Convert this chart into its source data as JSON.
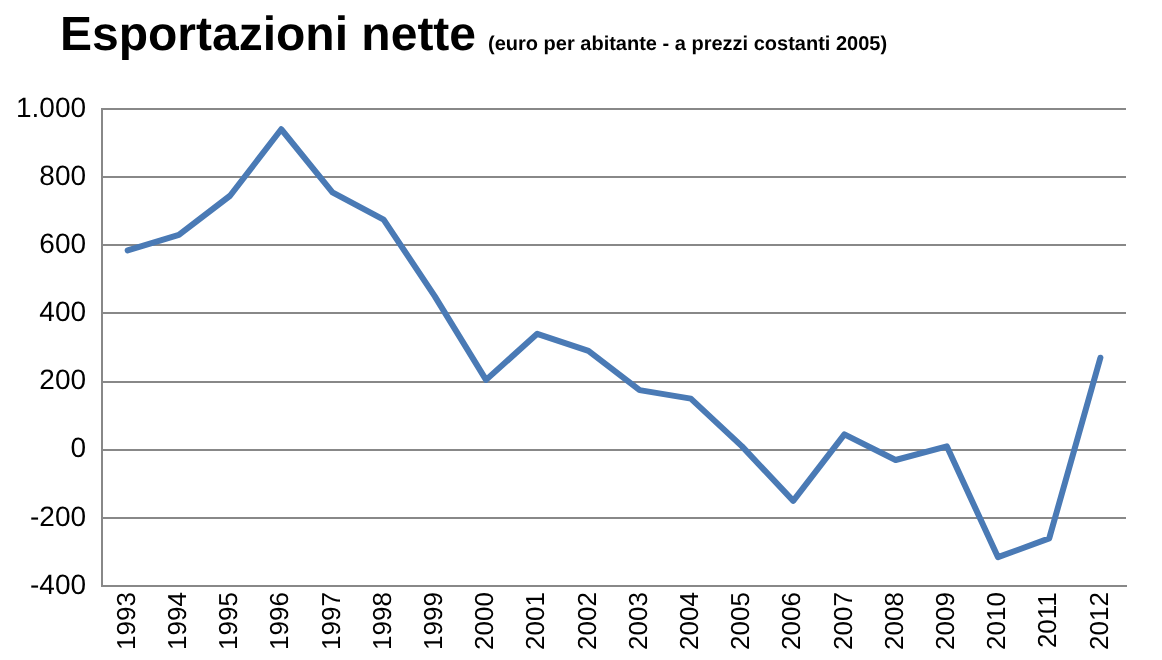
{
  "chart_data": {
    "type": "line",
    "title": "Esportazioni nette",
    "subtitle": "(euro per abitante - a prezzi costanti 2005)",
    "categories": [
      "1993",
      "1994",
      "1995",
      "1996",
      "1997",
      "1998",
      "1999",
      "2000",
      "2001",
      "2002",
      "2003",
      "2004",
      "2005",
      "2006",
      "2007",
      "2008",
      "2009",
      "2010",
      "2011",
      "2012"
    ],
    "series": [
      {
        "color": "#4a7ab5",
        "values": [
          585,
          630,
          745,
          940,
          755,
          675,
          450,
          205,
          340,
          290,
          175,
          150,
          10,
          -150,
          45,
          -30,
          10,
          -315,
          -260,
          270
        ]
      }
    ],
    "ylim": [
      -400,
      1000
    ],
    "yticks": [
      -400,
      -200,
      0,
      200,
      400,
      600,
      800,
      {
        "value": 1000,
        "label": "1.000"
      }
    ],
    "grid": "y",
    "legend": false,
    "marker": "none",
    "line_style": "solid"
  }
}
